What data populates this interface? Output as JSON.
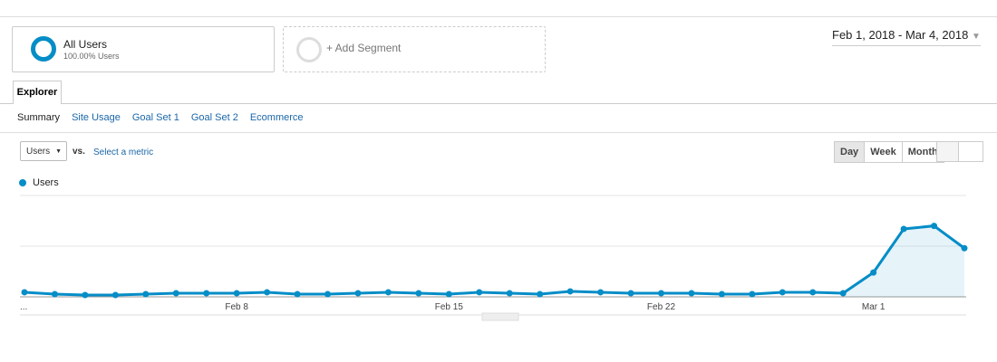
{
  "segments": {
    "primary": {
      "name": "All Users",
      "detail": "100.00% Users"
    },
    "add": "+ Add Segment"
  },
  "date_range": "Feb 1, 2018 - Mar 4, 2018",
  "tab": "Explorer",
  "subtabs": [
    "Summary",
    "Site Usage",
    "Goal Set 1",
    "Goal Set 2",
    "Ecommerce"
  ],
  "metric": {
    "selected": "Users",
    "vs": "vs.",
    "select": "Select a metric"
  },
  "periods": [
    "Day",
    "Week",
    "Month"
  ],
  "chart_data": {
    "type": "line",
    "categories": [
      "...",
      null,
      null,
      null,
      null,
      null,
      null,
      "Feb 8",
      null,
      null,
      null,
      null,
      null,
      null,
      "Feb 15",
      null,
      null,
      null,
      null,
      null,
      null,
      "Feb 22",
      null,
      null,
      null,
      null,
      null,
      null,
      "Mar 1",
      null,
      null,
      null
    ],
    "series": [
      {
        "name": "Users",
        "color": "#058dc7",
        "values": [
          4.5,
          2.7,
          1.8,
          1.8,
          2.7,
          3.6,
          3.6,
          3.6,
          4.5,
          2.7,
          2.7,
          3.6,
          4.5,
          3.6,
          2.7,
          4.5,
          3.6,
          2.7,
          5.4,
          4.5,
          3.6,
          3.6,
          3.6,
          2.7,
          2.7,
          4.5,
          4.5,
          3.6,
          24,
          67,
          70,
          48
        ]
      }
    ],
    "ylim": [
      0,
      100
    ],
    "ygrid": [
      0,
      50,
      100
    ],
    "area": true
  }
}
